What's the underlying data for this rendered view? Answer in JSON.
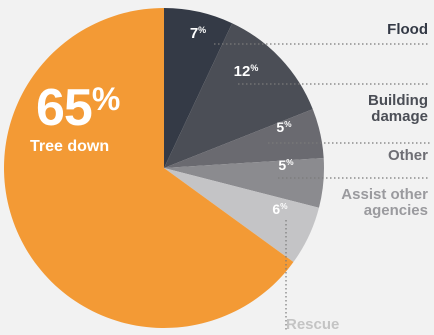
{
  "chart_data": {
    "type": "pie",
    "slices": [
      {
        "label": "Flood",
        "value": 7,
        "color": "#343a46"
      },
      {
        "label": "Building damage",
        "value": 12,
        "color": "#4b4e56"
      },
      {
        "label": "Other",
        "value": 5,
        "color": "#6a6a70"
      },
      {
        "label": "Assist other agencies",
        "value": 5,
        "color": "#8b8b8f"
      },
      {
        "label": "Rescue",
        "value": 6,
        "color": "#c4c4c6"
      },
      {
        "label": "Tree down",
        "value": 65,
        "color": "#f39a35"
      }
    ],
    "start_angle_deg": 0,
    "direction": "clockwise"
  },
  "labels": {
    "flood": "Flood",
    "building_1": "Building",
    "building_2": "damage",
    "other": "Other",
    "assist_1": "Assist other",
    "assist_2": "agencies",
    "rescue": "Rescue",
    "tree_value": "65",
    "tree_pct": "%",
    "tree_label": "Tree down"
  },
  "colors": {
    "background": "#f2f2f2",
    "label_dark": "#343a46",
    "label_mid": "#6e6e74",
    "label_light": "#9a9a9e",
    "label_lightest": "#c4c4c4",
    "leader": "#7a7a7a"
  }
}
